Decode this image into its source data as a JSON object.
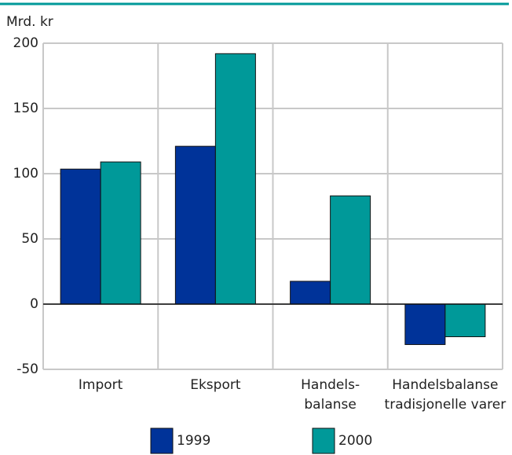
{
  "chart_data": {
    "type": "bar",
    "y_label": "Mrd. kr",
    "categories": [
      "Import",
      "Eksport",
      "Handels-\nbalanse",
      "Handelsbalanse\ntradisjonelle varer"
    ],
    "series": [
      {
        "name": "1999",
        "color": "#003399",
        "values": [
          103.5,
          121,
          17.5,
          -31
        ]
      },
      {
        "name": "2000",
        "color": "#009999",
        "values": [
          109,
          192,
          83,
          -25
        ]
      }
    ],
    "ylim": [
      -50,
      200
    ],
    "yticks": [
      -50,
      0,
      50,
      100,
      150,
      200
    ],
    "grid": true,
    "legend": "bottom"
  }
}
